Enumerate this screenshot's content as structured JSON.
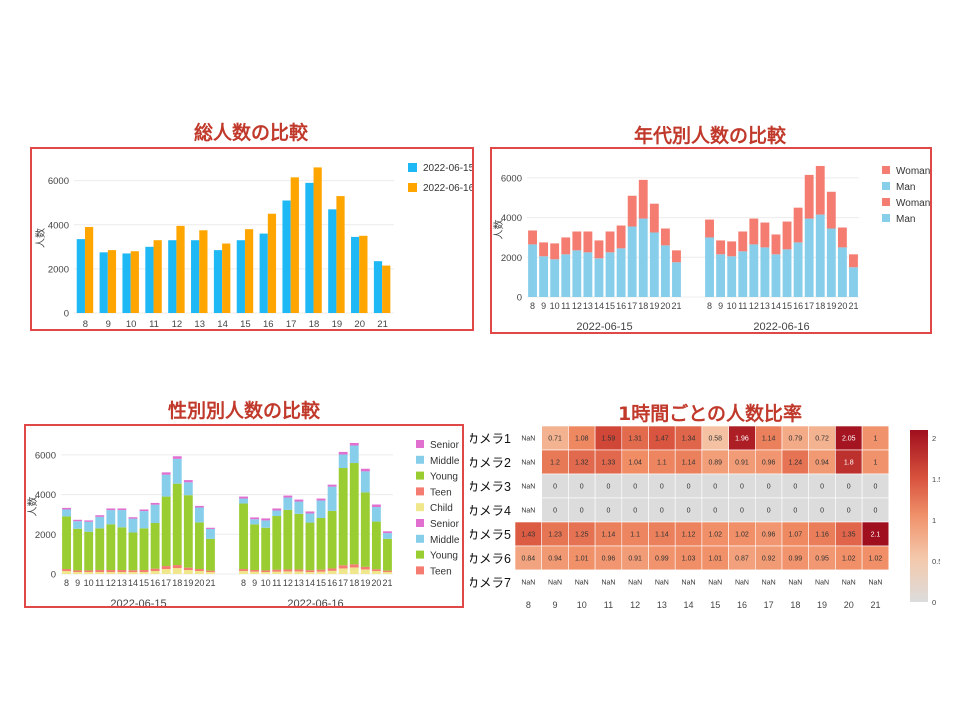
{
  "titles": {
    "total": "総人数の比較",
    "gender": "年代別人数の比較",
    "age": "性別別人数の比較",
    "heat": "1時間ごとの人数比率"
  },
  "colors": {
    "d15": "#1EB9F5",
    "d16": "#FFA500",
    "woman": "#F47C70",
    "man": "#87CEEB",
    "senior": "#E06FD0",
    "middle": "#87CEEB",
    "young": "#9ACD32",
    "teen": "#F47C70",
    "child": "#F0E68C",
    "panel_border": "#E04848",
    "title": "#C0392B"
  },
  "chart_data": [
    {
      "id": "total",
      "type": "bar",
      "categories": [
        "8",
        "9",
        "10",
        "11",
        "12",
        "13",
        "14",
        "15",
        "16",
        "17",
        "18",
        "19",
        "20",
        "21"
      ],
      "series": [
        {
          "name": "2022-06-15",
          "values": [
            3350,
            2750,
            2700,
            3000,
            3300,
            3300,
            2850,
            3300,
            3600,
            5100,
            5900,
            4700,
            3450,
            2350
          ]
        },
        {
          "name": "2022-06-16",
          "values": [
            3900,
            2850,
            2800,
            3300,
            3950,
            3750,
            3150,
            3800,
            4500,
            6150,
            6600,
            5300,
            3500,
            2150
          ]
        }
      ],
      "ylabel": "人数",
      "yticks": [
        0,
        2000,
        4000,
        6000
      ],
      "ylim": [
        0,
        6800
      ],
      "legend": "top-right"
    },
    {
      "id": "gender",
      "type": "bar",
      "stacked": true,
      "categories": [
        "8",
        "9",
        "10",
        "11",
        "12",
        "13",
        "14",
        "15",
        "16",
        "17",
        "18",
        "19",
        "20",
        "21"
      ],
      "facets": [
        {
          "label": "2022-06-15",
          "series": [
            {
              "name": "Man",
              "values": [
                2650,
                2050,
                1900,
                2150,
                2350,
                2250,
                1950,
                2250,
                2450,
                3550,
                3950,
                3250,
                2600,
                1750
              ]
            },
            {
              "name": "Woman",
              "values": [
                700,
                700,
                800,
                850,
                950,
                1050,
                900,
                1050,
                1150,
                1550,
                1950,
                1450,
                850,
                600
              ]
            }
          ]
        },
        {
          "label": "2022-06-16",
          "series": [
            {
              "name": "Man",
              "values": [
                3000,
                2150,
                2050,
                2300,
                2650,
                2500,
                2150,
                2400,
                2750,
                3950,
                4150,
                3450,
                2500,
                1500
              ]
            },
            {
              "name": "Woman",
              "values": [
                900,
                700,
                750,
                1000,
                1300,
                1250,
                1000,
                1400,
                1750,
                2200,
                2450,
                1850,
                1000,
                650
              ]
            }
          ]
        }
      ],
      "legend": [
        "Woman",
        "Man",
        "Woman",
        "Man"
      ],
      "ylabel": "人数",
      "yticks": [
        0,
        2000,
        4000,
        6000
      ],
      "ylim": [
        0,
        6800
      ]
    },
    {
      "id": "age",
      "type": "bar",
      "stacked": true,
      "categories": [
        "8",
        "9",
        "10",
        "11",
        "12",
        "13",
        "14",
        "15",
        "16",
        "17",
        "18",
        "19",
        "20",
        "21"
      ],
      "facets": [
        {
          "label": "2022-06-15",
          "series": [
            {
              "name": "Child",
              "values": [
                150,
                100,
                100,
                100,
                100,
                100,
                100,
                100,
                150,
                250,
                300,
                200,
                150,
                100
              ]
            },
            {
              "name": "Teen",
              "values": [
                100,
                80,
                80,
                100,
                100,
                100,
                90,
                100,
                120,
                150,
                150,
                120,
                100,
                70
              ]
            },
            {
              "name": "Young",
              "values": [
                2650,
                2100,
                1950,
                2100,
                2300,
                2150,
                1900,
                2100,
                2300,
                3500,
                4100,
                3650,
                2350,
                1600
              ]
            },
            {
              "name": "Middle",
              "values": [
                350,
                380,
                500,
                580,
                720,
                870,
                700,
                870,
                920,
                1100,
                1250,
                650,
                750,
                500
              ]
            },
            {
              "name": "Senior",
              "values": [
                80,
                70,
                70,
                80,
                80,
                80,
                70,
                80,
                90,
                120,
                130,
                110,
                80,
                60
              ]
            }
          ]
        },
        {
          "label": "2022-06-16",
          "series": [
            {
              "name": "Child",
              "values": [
                150,
                120,
                100,
                120,
                130,
                130,
                100,
                120,
                160,
                280,
                330,
                230,
                150,
                100
              ]
            },
            {
              "name": "Teen",
              "values": [
                100,
                80,
                80,
                100,
                100,
                100,
                90,
                100,
                120,
                160,
                160,
                130,
                90,
                70
              ]
            },
            {
              "name": "Young",
              "values": [
                3300,
                2300,
                2150,
                2700,
                3000,
                2800,
                2400,
                2600,
                2900,
                4900,
                5100,
                3750,
                2400,
                1600
              ]
            },
            {
              "name": "Middle",
              "values": [
                250,
                260,
                370,
                280,
                620,
                620,
                460,
                880,
                1220,
                680,
                880,
                1060,
                730,
                290
              ]
            },
            {
              "name": "Senior",
              "values": [
                100,
                90,
                100,
                100,
                100,
                100,
                100,
                100,
                100,
                130,
                130,
                130,
                130,
                90
              ]
            }
          ]
        }
      ],
      "legend": [
        "Senior",
        "Middle",
        "Young",
        "Teen",
        "Child",
        "Senior",
        "Middle",
        "Young",
        "Teen"
      ],
      "ylabel": "人数",
      "yticks": [
        0,
        2000,
        4000,
        6000
      ],
      "ylim": [
        0,
        6800
      ]
    },
    {
      "id": "heat",
      "type": "heatmap",
      "rows": [
        "カメラ1",
        "カメラ2",
        "カメラ3",
        "カメラ4",
        "カメラ5",
        "カメラ6",
        "カメラ7"
      ],
      "columns": [
        "8",
        "9",
        "10",
        "11",
        "12",
        "13",
        "14",
        "15",
        "16",
        "17",
        "18",
        "19",
        "20",
        "21"
      ],
      "values": [
        [
          null,
          0.71,
          1.08,
          1.59,
          1.31,
          1.47,
          1.34,
          0.58,
          1.96,
          1.14,
          0.79,
          0.72,
          2.05,
          1
        ],
        [
          null,
          1.2,
          1.32,
          1.33,
          1.04,
          1.1,
          1.14,
          0.89,
          0.91,
          0.96,
          1.24,
          0.94,
          1.8,
          1
        ],
        [
          null,
          0,
          0,
          0,
          0,
          0,
          0,
          0,
          0,
          0,
          0,
          0,
          0,
          0
        ],
        [
          null,
          0,
          0,
          0,
          0,
          0,
          0,
          0,
          0,
          0,
          0,
          0,
          0,
          0
        ],
        [
          1.43,
          1.23,
          1.25,
          1.14,
          1.1,
          1.14,
          1.12,
          1.02,
          1.02,
          0.96,
          1.07,
          1.16,
          1.35,
          2.1
        ],
        [
          0.84,
          0.94,
          1.01,
          0.96,
          0.91,
          0.99,
          1.03,
          1.01,
          0.87,
          0.92,
          0.99,
          0.95,
          1.02,
          1.02
        ],
        [
          null,
          null,
          null,
          null,
          null,
          null,
          null,
          null,
          null,
          null,
          null,
          null,
          null,
          null
        ]
      ],
      "nan_label": "NaN",
      "colorbar_ticks": [
        0,
        0.5,
        1,
        1.5,
        2
      ],
      "colorbar_tick_labels": [
        "0",
        "0.5",
        "1",
        "1.5",
        "2"
      ],
      "zlim": [
        0,
        2.1
      ]
    }
  ]
}
